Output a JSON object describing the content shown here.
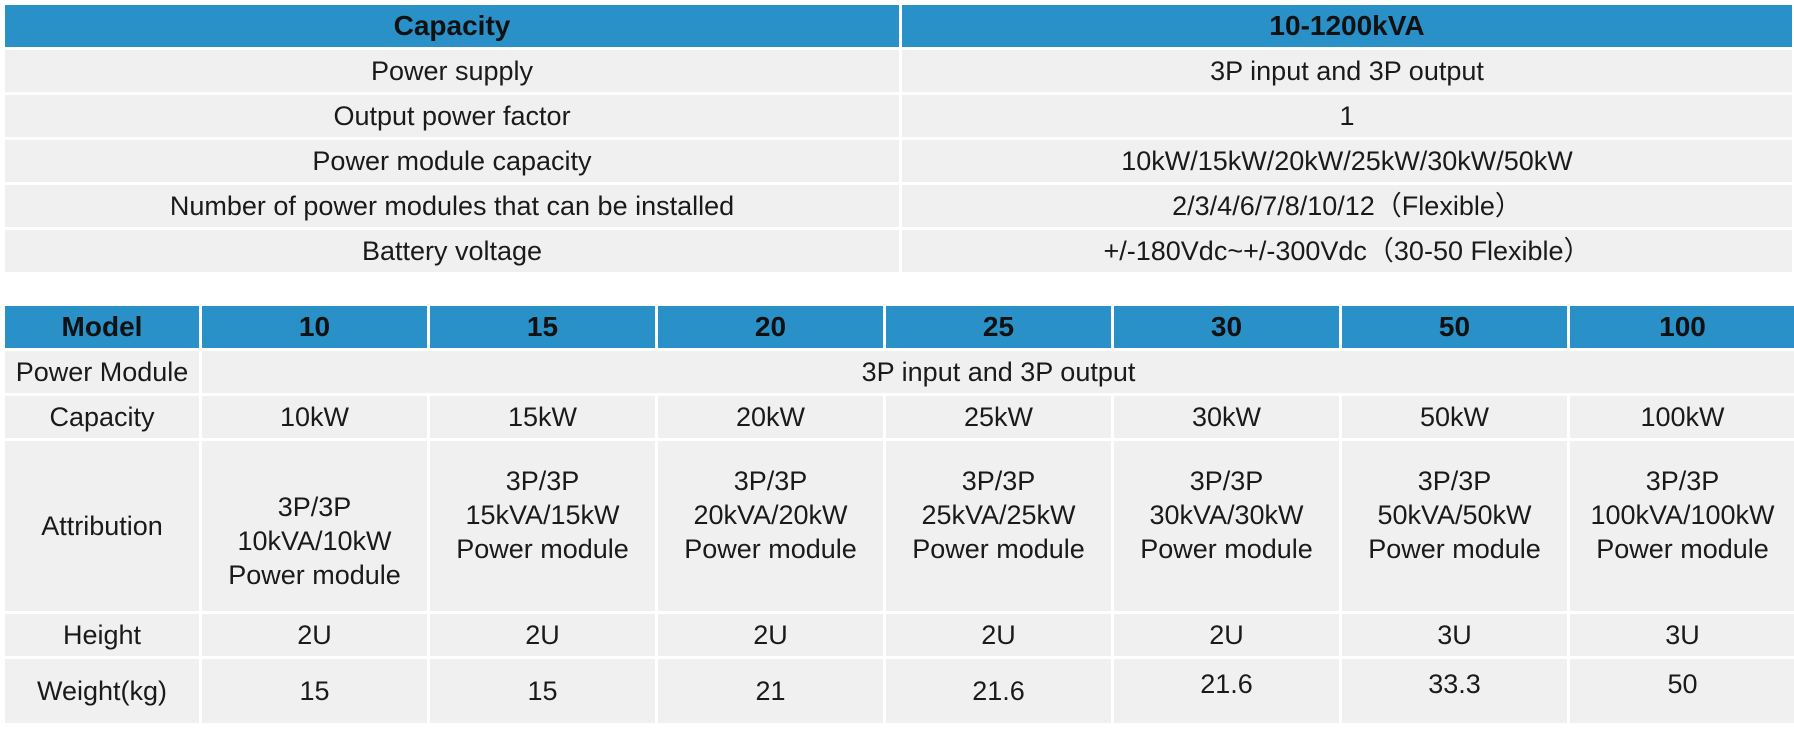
{
  "spec_table": {
    "header": {
      "label": "Capacity",
      "value": "10-1200kVA"
    },
    "rows": [
      {
        "label": "Power supply",
        "value": "3P input and 3P output"
      },
      {
        "label": "Output power factor",
        "value": "1"
      },
      {
        "label": "Power module capacity",
        "value": "10kW/15kW/20kW/25kW/30kW/50kW"
      },
      {
        "label": "Number of power modules that can be installed",
        "value": "2/3/4/6/7/8/10/12（Flexible）"
      },
      {
        "label": "Battery voltage",
        "value": "+/-180Vdc~+/-300Vdc（30-50 Flexible）"
      }
    ]
  },
  "model_table": {
    "header": [
      "Model",
      "10",
      "15",
      "20",
      "25",
      "30",
      "50",
      "100"
    ],
    "power_module": {
      "label": "Power Module",
      "value": "3P input and 3P output"
    },
    "capacity": {
      "label": "Capacity",
      "values": [
        "10kW",
        "15kW",
        "20kW",
        "25kW",
        "30kW",
        "50kW",
        "100kW"
      ]
    },
    "attribution": {
      "label": "Attribution",
      "values": [
        "3P/3P\n10kVA/10kW\nPower module",
        "3P/3P\n15kVA/15kW\nPower module",
        "3P/3P\n20kVA/20kW\nPower module",
        "3P/3P\n25kVA/25kW\nPower module",
        "3P/3P\n30kVA/30kW\nPower module",
        "3P/3P\n50kVA/50kW\nPower module",
        "3P/3P\n100kVA/100kW\nPower module"
      ]
    },
    "height": {
      "label": "Height",
      "values": [
        "2U",
        "2U",
        "2U",
        "2U",
        "2U",
        "3U",
        "3U"
      ]
    },
    "weight": {
      "label": "Weight(kg)",
      "values": [
        "15",
        "15",
        "21",
        "21.6",
        "21.6",
        "33.3",
        "50"
      ]
    }
  },
  "colors": {
    "header_bg": "#2990c8",
    "cell_bg": "#f0f0f0",
    "text": "#1a1a1a"
  }
}
